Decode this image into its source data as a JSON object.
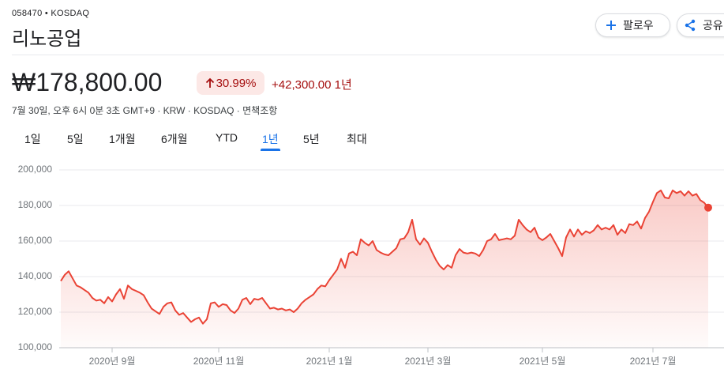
{
  "ticker": "058470 • KOSDAQ",
  "name": "리노공업",
  "buttons": [
    "팔로우",
    "공유"
  ],
  "price": "₩178,800.00",
  "change_pct": "30.99%",
  "change_abs": "+42,300.00 1년",
  "timestamp": "7월 30일, 오후 6시 0분 3초 GMT+9 · KRW · KOSDAQ · 면책조항",
  "ranges": [
    "1일",
    "5일",
    "1개월",
    "6개월",
    "YTD",
    "1년",
    "5년",
    "최대"
  ],
  "active_range": 5,
  "chart_data": {
    "type": "line",
    "color": "#ea4335",
    "grid": true,
    "ylim": [
      100000,
      200000
    ],
    "yticks": [
      {
        "value": 100000,
        "label": "100,000"
      },
      {
        "value": 120000,
        "label": "120,000"
      },
      {
        "value": 140000,
        "label": "140,000"
      },
      {
        "value": 160000,
        "label": "160,000"
      },
      {
        "value": 180000,
        "label": "180,000"
      },
      {
        "value": 200000,
        "label": "200,000"
      }
    ],
    "categories": [
      null,
      null,
      null,
      null,
      null,
      null,
      null,
      null,
      null,
      null,
      null,
      null,
      null,
      "2020년 9월",
      null,
      null,
      null,
      null,
      null,
      null,
      null,
      null,
      null,
      null,
      null,
      null,
      null,
      null,
      null,
      null,
      null,
      null,
      null,
      null,
      null,
      null,
      null,
      null,
      null,
      null,
      "2020년 11월",
      null,
      null,
      null,
      null,
      null,
      null,
      null,
      null,
      null,
      null,
      null,
      null,
      null,
      null,
      null,
      null,
      null,
      null,
      null,
      null,
      null,
      null,
      null,
      null,
      null,
      null,
      null,
      "2021년 1월",
      null,
      null,
      null,
      null,
      null,
      null,
      null,
      null,
      null,
      null,
      null,
      null,
      null,
      null,
      null,
      null,
      null,
      null,
      null,
      null,
      null,
      null,
      null,
      null,
      "2021년 3월",
      null,
      null,
      null,
      null,
      null,
      null,
      null,
      null,
      null,
      null,
      null,
      null,
      null,
      null,
      null,
      null,
      null,
      null,
      null,
      null,
      null,
      null,
      null,
      null,
      null,
      null,
      null,
      null,
      "2021년 5월",
      null,
      null,
      null,
      null,
      null,
      null,
      null,
      null,
      null,
      null,
      null,
      null,
      null,
      null,
      null,
      null,
      null,
      null,
      null,
      null,
      null,
      null,
      null,
      null,
      null,
      null,
      null,
      "2021년 7월",
      null,
      null,
      null,
      null,
      null,
      null,
      null,
      null,
      null,
      null,
      null,
      null,
      null,
      null
    ],
    "values": [
      137500,
      141000,
      143000,
      139000,
      135000,
      134000,
      132500,
      131000,
      128000,
      126500,
      127000,
      125000,
      128500,
      126000,
      130000,
      133000,
      127500,
      135000,
      133000,
      132000,
      131000,
      129500,
      125500,
      122000,
      120500,
      119000,
      123000,
      125000,
      125500,
      121000,
      118500,
      119500,
      117000,
      114500,
      116000,
      117000,
      113500,
      116000,
      125000,
      125500,
      123000,
      124500,
      124000,
      121000,
      119500,
      122000,
      127000,
      128000,
      124500,
      127500,
      127000,
      128000,
      125000,
      122000,
      122500,
      121500,
      122000,
      121000,
      121500,
      120000,
      122000,
      125000,
      127000,
      128500,
      130000,
      133000,
      135000,
      134500,
      138000,
      141000,
      144000,
      150000,
      145000,
      153000,
      154000,
      152000,
      161000,
      159000,
      157500,
      160000,
      155000,
      153500,
      152500,
      152000,
      154000,
      156000,
      161000,
      161500,
      165000,
      172000,
      161000,
      158000,
      161500,
      159000,
      154000,
      149500,
      146000,
      144000,
      146500,
      145000,
      152000,
      155500,
      153500,
      153000,
      153500,
      153000,
      151500,
      155000,
      160000,
      161000,
      164000,
      160500,
      161000,
      161500,
      161000,
      163000,
      172000,
      169000,
      166500,
      165000,
      167500,
      162000,
      160500,
      162000,
      164000,
      160000,
      156000,
      151500,
      162000,
      166500,
      162500,
      166500,
      163500,
      165500,
      164500,
      166000,
      169000,
      166500,
      167500,
      166500,
      169000,
      163500,
      166500,
      164500,
      169500,
      169000,
      171000,
      167000,
      173000,
      176500,
      182000,
      187000,
      188500,
      184500,
      184000,
      188500,
      187000,
      188000,
      185500,
      188000,
      185500,
      186500,
      183000,
      181500,
      178800
    ]
  }
}
